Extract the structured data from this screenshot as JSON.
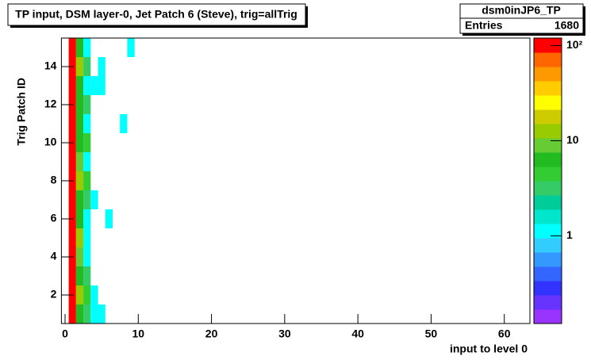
{
  "chart_data": {
    "type": "heatmap",
    "title": "TP input, DSM layer-0, Jet Patch 6 (Steve), trig=allTrig",
    "x_label": "input to level 0",
    "y_label": "Trig Patch ID",
    "stats": {
      "name": "dsm0inJP6_TP",
      "label": "Entries",
      "entries": 1680
    },
    "xlim": [
      -0.5,
      63.5
    ],
    "ylim": [
      0.5,
      15.5
    ],
    "xticks": [
      0,
      10,
      20,
      30,
      40,
      50,
      60
    ],
    "yticks": [
      2,
      4,
      6,
      8,
      10,
      12,
      14
    ],
    "zlim": [
      0.12,
      120
    ],
    "zlog": true,
    "zticks": [
      1,
      10,
      {
        "value": 100,
        "label": "10²"
      }
    ],
    "palette": [
      "#9933ff",
      "#6633ff",
      "#3333ff",
      "#3366ff",
      "#3399ff",
      "#33ccff",
      "#00ffff",
      "#00e6cc",
      "#00cc99",
      "#33cc66",
      "#33cc33",
      "#22bb22",
      "#66cc33",
      "#99cc00",
      "#cccc00",
      "#ffff00",
      "#ffcc00",
      "#ff9900",
      "#ff6600",
      "#ff0000"
    ],
    "x": [
      1,
      1,
      1,
      1,
      1,
      1,
      1,
      1,
      1,
      1,
      1,
      1,
      1,
      1,
      1,
      2,
      2,
      2,
      2,
      2,
      2,
      2,
      2,
      2,
      2,
      2,
      2,
      2,
      2,
      2,
      3,
      3,
      3,
      3,
      3,
      3,
      3,
      3,
      3,
      3,
      3,
      3,
      3,
      3,
      3,
      4,
      4,
      4,
      4,
      5,
      5,
      5,
      6,
      8,
      9
    ],
    "y": [
      1,
      2,
      3,
      4,
      5,
      6,
      7,
      8,
      9,
      10,
      11,
      12,
      13,
      14,
      15,
      1,
      2,
      3,
      4,
      5,
      6,
      7,
      8,
      9,
      10,
      11,
      12,
      13,
      14,
      15,
      1,
      2,
      3,
      4,
      5,
      6,
      7,
      8,
      9,
      10,
      11,
      12,
      13,
      14,
      15,
      1,
      2,
      7,
      13,
      1,
      13,
      14,
      6,
      11,
      15
    ],
    "values": [
      98,
      102,
      100,
      97,
      101,
      99,
      103,
      96,
      100,
      98,
      102,
      99,
      101,
      100,
      97,
      7,
      12,
      6,
      8,
      11,
      7,
      6,
      12,
      10,
      7,
      6,
      7,
      6,
      12,
      7,
      3,
      4,
      3,
      1,
      1,
      1,
      3,
      4,
      1,
      4,
      1,
      3,
      1,
      3,
      1,
      1,
      1,
      1,
      1,
      1,
      1,
      1,
      1,
      1,
      1
    ]
  }
}
